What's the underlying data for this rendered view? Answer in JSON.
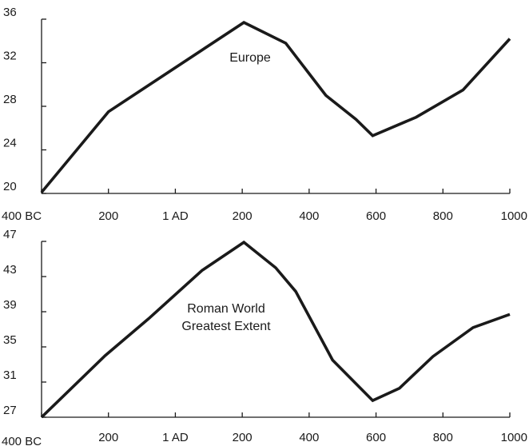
{
  "chart_data": [
    {
      "type": "line",
      "series": [
        {
          "name": "Europe",
          "x": [
            -400,
            -200,
            205,
            330,
            450,
            540,
            590,
            720,
            860,
            1000
          ],
          "values": [
            20.1,
            27.5,
            35.7,
            33.8,
            29.0,
            26.8,
            25.3,
            27.0,
            29.5,
            34.2
          ]
        }
      ],
      "label_lines": [
        "Europe"
      ],
      "xticks": [
        -400,
        -200,
        0,
        200,
        400,
        600,
        800,
        1000
      ],
      "xtick_labels": [
        "400 BC",
        "200",
        "1 AD",
        "200",
        "400",
        "600",
        "800",
        "1000"
      ],
      "yticks": [
        20,
        24,
        28,
        32,
        36
      ],
      "ylim": [
        20,
        36
      ],
      "xlim": [
        -400,
        1000
      ]
    },
    {
      "type": "line",
      "series": [
        {
          "name": "Roman World Greatest Extent",
          "x": [
            -400,
            -210,
            -80,
            80,
            205,
            300,
            360,
            470,
            590,
            670,
            770,
            890,
            1000
          ],
          "values": [
            27.0,
            34.0,
            38.2,
            43.7,
            46.9,
            44.0,
            41.3,
            33.5,
            28.9,
            30.3,
            33.9,
            37.2,
            38.7
          ]
        }
      ],
      "label_lines": [
        "Roman World",
        "Greatest Extent"
      ],
      "xticks": [
        -400,
        -200,
        0,
        200,
        400,
        600,
        800,
        1000
      ],
      "xtick_labels": [
        "400 BC",
        "200",
        "1 AD",
        "200",
        "400",
        "600",
        "800",
        "1000"
      ],
      "yticks": [
        27,
        31,
        35,
        39,
        43,
        47
      ],
      "ylim": [
        27,
        47
      ],
      "xlim": [
        -400,
        1000
      ]
    }
  ]
}
